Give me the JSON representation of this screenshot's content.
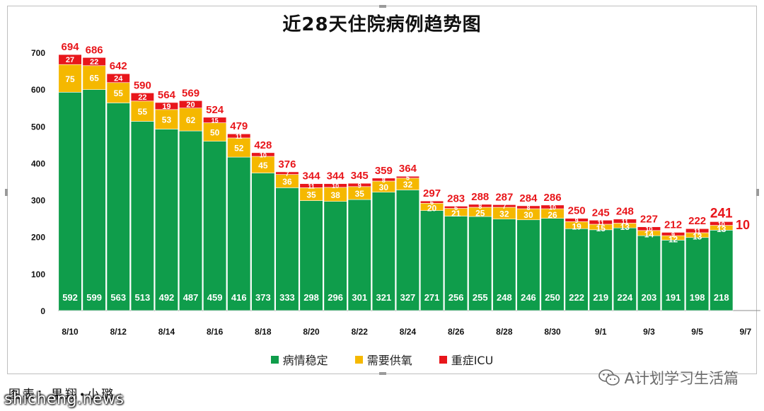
{
  "credit": {
    "prefix": "图表",
    "author": "果翔",
    "sep": "•",
    "suffix": "小璐",
    "mark": "↵"
  },
  "watermark": {
    "icon": "wechat-icon",
    "text": "A计划学习生活篇"
  },
  "site": {
    "text": "shicheng.news"
  },
  "colors": {
    "stable": "#0f9d4b",
    "oxygen": "#f5b800",
    "icu": "#e8161b",
    "label_red": "#e8161b"
  },
  "chart_data": {
    "type": "bar",
    "stacked": true,
    "title": "近28天住院病例趋势图",
    "xlabel": "",
    "ylabel": "",
    "ylim": [
      0,
      700
    ],
    "yticks": [
      0,
      100,
      200,
      300,
      400,
      500,
      600,
      700
    ],
    "categories": [
      "8/10",
      "8/11",
      "8/12",
      "8/13",
      "8/14",
      "8/15",
      "8/16",
      "8/17",
      "8/18",
      "8/19",
      "8/20",
      "8/21",
      "8/22",
      "8/23",
      "8/24",
      "8/25",
      "8/26",
      "8/27",
      "8/28",
      "8/29",
      "8/30",
      "8/31",
      "9/1",
      "9/2",
      "9/3",
      "9/4",
      "9/5",
      "9/6",
      "9/7"
    ],
    "tick_labels": [
      "8/10",
      "",
      "8/12",
      "",
      "8/14",
      "",
      "8/16",
      "",
      "8/18",
      "",
      "8/20",
      "",
      "8/22",
      "",
      "8/24",
      "",
      "8/26",
      "",
      "8/28",
      "",
      "8/30",
      "",
      "9/1",
      "",
      "9/3",
      "",
      "9/5",
      "",
      "9/7"
    ],
    "series": [
      {
        "name": "病情稳定",
        "values": [
          592,
          599,
          563,
          513,
          492,
          487,
          459,
          416,
          373,
          333,
          298,
          296,
          301,
          321,
          327,
          271,
          256,
          255,
          248,
          246,
          250,
          222,
          219,
          224,
          203,
          191,
          198,
          218,
          null
        ]
      },
      {
        "name": "需要供氧",
        "values": [
          75,
          65,
          55,
          55,
          53,
          62,
          50,
          52,
          45,
          36,
          35,
          38,
          35,
          30,
          32,
          20,
          21,
          25,
          32,
          30,
          26,
          19,
          15,
          13,
          14,
          12,
          13,
          13,
          null
        ]
      },
      {
        "name": "重症ICU",
        "values": [
          27,
          22,
          24,
          22,
          19,
          20,
          15,
          11,
          10,
          7,
          11,
          10,
          9,
          8,
          5,
          6,
          6,
          8,
          7,
          8,
          10,
          9,
          11,
          11,
          10,
          9,
          11,
          10,
          null
        ]
      }
    ],
    "totals": [
      694,
      686,
      642,
      590,
      564,
      569,
      524,
      479,
      428,
      376,
      344,
      344,
      345,
      359,
      364,
      297,
      283,
      288,
      287,
      284,
      286,
      250,
      245,
      248,
      227,
      212,
      222,
      241,
      null
    ],
    "legend": "bottom-center",
    "grid": false
  }
}
